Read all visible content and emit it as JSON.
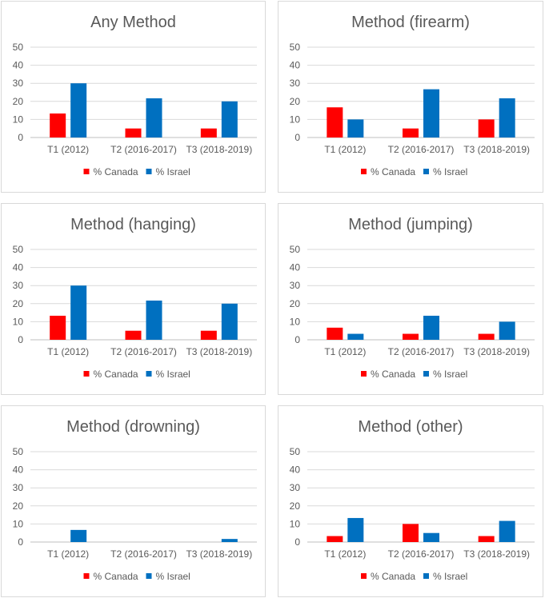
{
  "colors": {
    "canada": "#ff0000",
    "israel": "#0070c0",
    "grid": "#d9d9d9",
    "text": "#595959"
  },
  "legend": {
    "canada": "% Canada",
    "israel": "% Israel"
  },
  "chart_data": [
    {
      "type": "bar",
      "title": "Any Method",
      "categories": [
        "T1 (2012)",
        "T2 (2016-2017)",
        "T3 (2018-2019)"
      ],
      "yticks": [
        "0",
        "10",
        "20",
        "30",
        "40",
        "50"
      ],
      "ylim": [
        0,
        50
      ],
      "series": [
        {
          "name": "% Canada",
          "values": [
            13.3,
            5,
            5
          ]
        },
        {
          "name": "% Israel",
          "values": [
            30,
            21.7,
            20
          ]
        }
      ]
    },
    {
      "type": "bar",
      "title": "Method (firearm)",
      "categories": [
        "T1 (2012)",
        "T2 (2016-2017)",
        "T3 (2018-2019)"
      ],
      "yticks": [
        "0",
        "10",
        "20",
        "30",
        "40",
        "50"
      ],
      "ylim": [
        0,
        50
      ],
      "series": [
        {
          "name": "% Canada",
          "values": [
            16.7,
            5,
            10
          ]
        },
        {
          "name": "% Israel",
          "values": [
            10,
            26.7,
            21.7
          ]
        }
      ]
    },
    {
      "type": "bar",
      "title": "Method (hanging)",
      "categories": [
        "T1 (2012)",
        "T2 (2016-2017)",
        "T3 (2018-2019)"
      ],
      "yticks": [
        "0",
        "10",
        "20",
        "30",
        "40",
        "50"
      ],
      "ylim": [
        0,
        50
      ],
      "series": [
        {
          "name": "% Canada",
          "values": [
            13.3,
            5,
            5
          ]
        },
        {
          "name": "% Israel",
          "values": [
            30,
            21.7,
            20
          ]
        }
      ]
    },
    {
      "type": "bar",
      "title": "Method (jumping)",
      "categories": [
        "T1 (2012)",
        "T2 (2016-2017)",
        "T3 (2018-2019)"
      ],
      "yticks": [
        "0",
        "10",
        "20",
        "30",
        "40",
        "50"
      ],
      "ylim": [
        0,
        50
      ],
      "series": [
        {
          "name": "% Canada",
          "values": [
            6.7,
            3.3,
            3.3
          ]
        },
        {
          "name": "% Israel",
          "values": [
            3.3,
            13.3,
            10
          ]
        }
      ]
    },
    {
      "type": "bar",
      "title": "Method (drowning)",
      "categories": [
        "T1 (2012)",
        "T2 (2016-2017)",
        "T3 (2018-2019)"
      ],
      "yticks": [
        "0",
        "10",
        "20",
        "30",
        "40",
        "50"
      ],
      "ylim": [
        0,
        50
      ],
      "series": [
        {
          "name": "% Canada",
          "values": [
            0,
            0,
            0
          ]
        },
        {
          "name": "% Israel",
          "values": [
            6.7,
            0,
            1.7
          ]
        }
      ]
    },
    {
      "type": "bar",
      "title": "Method (other)",
      "categories": [
        "T1 (2012)",
        "T2 (2016-2017)",
        "T3 (2018-2019)"
      ],
      "yticks": [
        "0",
        "10",
        "20",
        "30",
        "40",
        "50"
      ],
      "ylim": [
        0,
        50
      ],
      "series": [
        {
          "name": "% Canada",
          "values": [
            3.3,
            10,
            3.3
          ]
        },
        {
          "name": "% Israel",
          "values": [
            13.3,
            5,
            11.7
          ]
        }
      ]
    }
  ]
}
